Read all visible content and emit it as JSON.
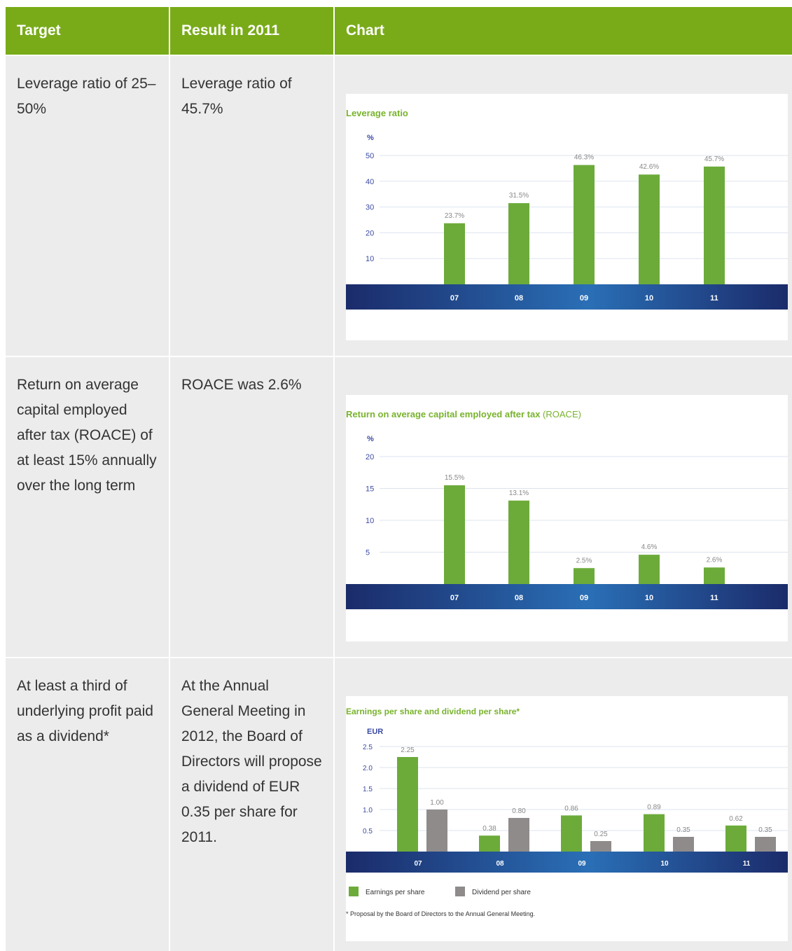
{
  "table": {
    "headers": [
      "Target",
      "Result in 2011",
      "Chart"
    ],
    "rows": [
      {
        "target": "Leverage ratio of 25–50%",
        "result": "Leverage ratio of 45.7%"
      },
      {
        "target": "Return on average capital employed after tax (ROACE) of at least 15% annually over the long term",
        "result": "ROACE was 2.6%"
      },
      {
        "target": "At least a third of underlying profit paid as a dividend*",
        "result": "At the Annual General Meeting in 2012, the Board of Directors will propose a dividend of EUR 0.35 per share for 2011."
      }
    ]
  },
  "colors": {
    "header": "#79ab19",
    "bar_green": "#6cab3a",
    "bar_gray": "#8f8b8b",
    "axis_band_dark": "#1b2b6a",
    "axis_band_light": "#2a6fb6"
  },
  "chart_data": [
    {
      "type": "bar",
      "title": "Leverage ratio",
      "unit": "%",
      "categories": [
        "07",
        "08",
        "09",
        "10",
        "11"
      ],
      "values": [
        23.7,
        31.5,
        46.3,
        42.6,
        45.7
      ],
      "value_labels": [
        "23.7%",
        "31.5%",
        "46.3%",
        "42.6%",
        "45.7%"
      ],
      "yticks": [
        10,
        20,
        30,
        40,
        50
      ],
      "ylim": [
        0,
        50
      ]
    },
    {
      "type": "bar",
      "title": "Return on average capital employed after tax",
      "title_suffix": "(ROACE)",
      "unit": "%",
      "categories": [
        "07",
        "08",
        "09",
        "10",
        "11"
      ],
      "values": [
        15.5,
        13.1,
        2.5,
        4.6,
        2.6
      ],
      "value_labels": [
        "15.5%",
        "13.1%",
        "2.5%",
        "4.6%",
        "2.6%"
      ],
      "yticks": [
        5,
        10,
        15,
        20
      ],
      "ylim": [
        0,
        20
      ]
    },
    {
      "type": "bar",
      "title": "Earnings per share and dividend per share*",
      "unit": "EUR",
      "categories": [
        "07",
        "08",
        "09",
        "10",
        "11"
      ],
      "series": [
        {
          "name": "Earnings per share",
          "values": [
            2.25,
            0.38,
            0.86,
            0.89,
            0.62
          ],
          "labels": [
            "2.25",
            "0.38",
            "0.86",
            "0.89",
            "0.62"
          ]
        },
        {
          "name": "Dividend per share",
          "values": [
            1.0,
            0.8,
            0.25,
            0.35,
            0.35
          ],
          "labels": [
            "1.00",
            "0.80",
            "0.25",
            "0.35",
            "0.35"
          ]
        }
      ],
      "yticks": [
        0.5,
        1.0,
        1.5,
        2.0,
        2.5
      ],
      "ytick_labels": [
        "0.5",
        "1.0",
        "1.5",
        "2.0",
        "2.5"
      ],
      "ylim": [
        0,
        2.5
      ],
      "legend": "bottom-left",
      "footnote": "* Proposal by the Board of Directors to the Annual General Meeting."
    }
  ]
}
